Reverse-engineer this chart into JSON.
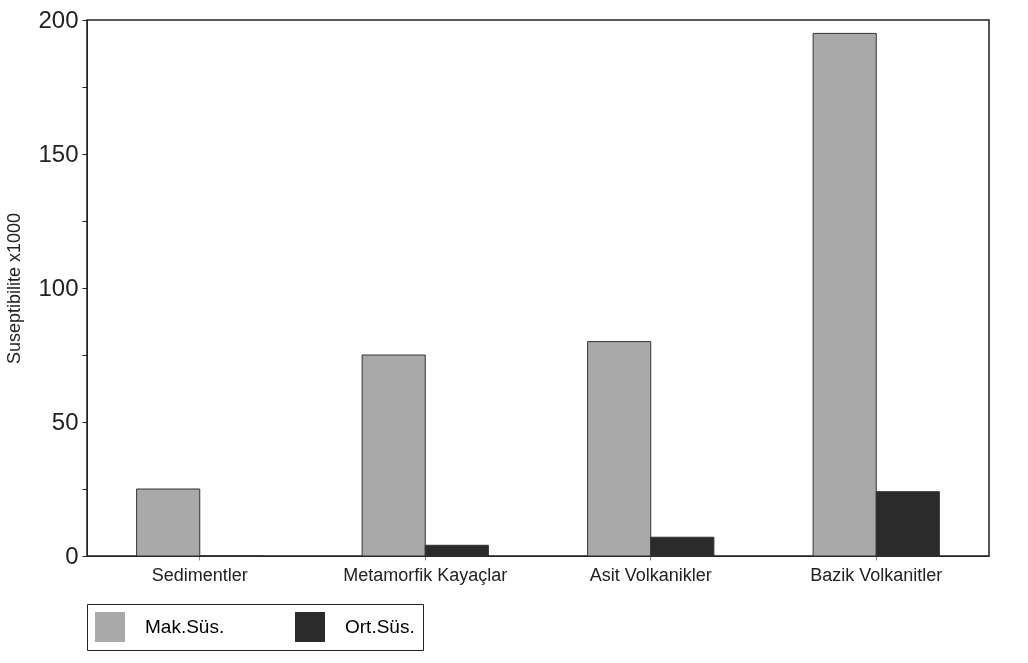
{
  "chart_data": {
    "type": "bar",
    "ylabel": "Suseptibilite x1000",
    "categories": [
      "Sedimentler",
      "Metamorfik Kayaçlar",
      "Asit Volkanikler",
      "Bazik Volkanitler"
    ],
    "series": [
      {
        "name": "Mak.Süs.",
        "color": "#a9a9a9",
        "values": [
          25,
          75,
          80,
          195
        ]
      },
      {
        "name": "Ort.Süs.",
        "color": "#2b2b2b",
        "values": [
          0,
          4,
          7,
          24
        ]
      }
    ],
    "ylim": [
      0,
      200
    ],
    "yticks": [
      0,
      {
        "value": 25,
        "label": null
      },
      50,
      {
        "value": 75,
        "label": null
      },
      100,
      {
        "value": 125,
        "label": null
      },
      150,
      {
        "value": 175,
        "label": null
      },
      200
    ],
    "grid": false,
    "legend": "bottom"
  }
}
